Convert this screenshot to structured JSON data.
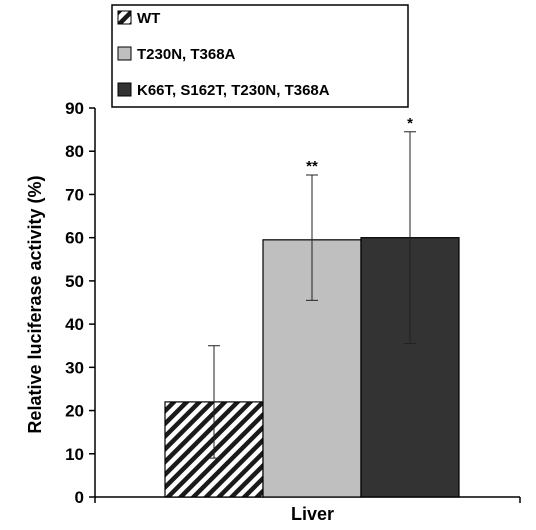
{
  "chart_data": {
    "type": "bar",
    "title": "",
    "xlabel": "Liver",
    "ylabel": "Relative luciferase activity (%)",
    "ylim": [
      0,
      90
    ],
    "yticks": [
      0,
      10,
      20,
      30,
      40,
      50,
      60,
      70,
      80,
      90
    ],
    "grid": false,
    "legend_position": "top-left",
    "categories": [
      "Liver"
    ],
    "series": [
      {
        "name": "WT",
        "value": 22,
        "error_low": 9,
        "error_high": 35,
        "significance": "",
        "fill": "hatch",
        "color": "#1a1a1a"
      },
      {
        "name": "T230N, T368A",
        "value": 59.5,
        "error_low": 45.5,
        "error_high": 74.5,
        "significance": "**",
        "fill": "solid",
        "color": "#bfbfbf"
      },
      {
        "name": "K66T, S162T, T230N, T368A",
        "value": 60,
        "error_low": 35.5,
        "error_high": 84.5,
        "significance": "*",
        "fill": "solid",
        "color": "#333333"
      }
    ]
  }
}
